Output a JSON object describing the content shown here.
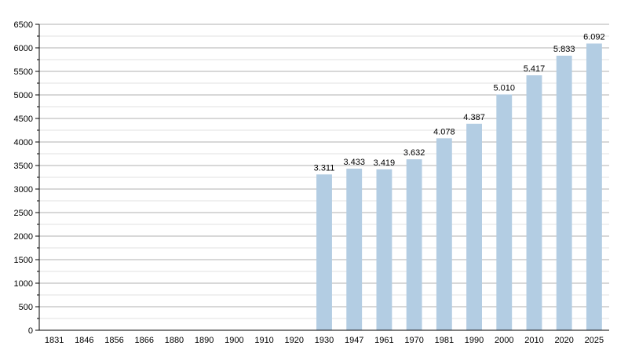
{
  "chart_data": {
    "type": "bar",
    "categories": [
      "1831",
      "1846",
      "1856",
      "1866",
      "1880",
      "1890",
      "1900",
      "1910",
      "1920",
      "1930",
      "1947",
      "1961",
      "1970",
      "1981",
      "1990",
      "2000",
      "2010",
      "2020",
      "2025"
    ],
    "values": [
      null,
      null,
      null,
      null,
      null,
      null,
      null,
      null,
      null,
      3311,
      3433,
      3419,
      3632,
      4078,
      4387,
      5010,
      5417,
      5833,
      6092
    ],
    "data_labels": [
      "",
      "",
      "",
      "",
      "",
      "",
      "",
      "",
      "",
      "3.311",
      "3.433",
      "3.419",
      "3.632",
      "4.078",
      "4.387",
      "5.010",
      "5.417",
      "5.833",
      "6.092"
    ],
    "ylim": [
      0,
      6500
    ],
    "yticks": [
      0,
      500,
      1000,
      1500,
      2000,
      2500,
      3000,
      3500,
      4000,
      4500,
      5000,
      5500,
      6000,
      6500
    ],
    "grid": true,
    "colors": {
      "bar": "#b3cde3",
      "grid_major": "#b0b0b0",
      "grid_minor": "#e2e2e2",
      "axis": "#000000"
    }
  }
}
